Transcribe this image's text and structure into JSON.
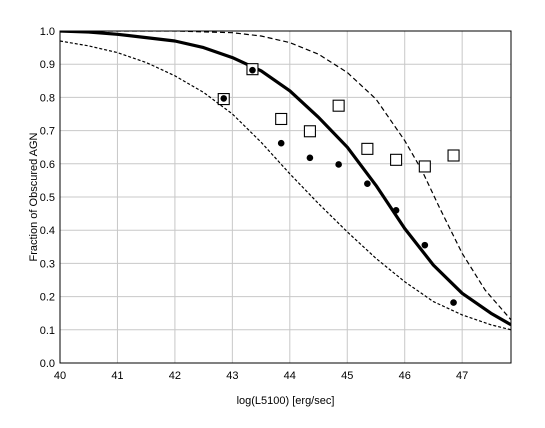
{
  "chart_data": {
    "type": "scatter",
    "title": "",
    "xlabel": "log(L5100) [erg/sec]",
    "ylabel": "Fraction of Obscured AGN",
    "xlim": [
      40,
      47.85
    ],
    "ylim": [
      0.0,
      1.0
    ],
    "xticks": [
      "40",
      "41",
      "42",
      "43",
      "44",
      "45",
      "46",
      "47"
    ],
    "yticks": [
      "0.0",
      "0.1",
      "0.2",
      "0.3",
      "0.4",
      "0.5",
      "0.6",
      "0.7",
      "0.8",
      "0.9",
      "1.0"
    ],
    "grid": true,
    "legend": "none",
    "series": [
      {
        "style": "solid-thick-line",
        "x": [
          40.0,
          40.5,
          41.0,
          41.5,
          42.0,
          42.5,
          43.0,
          43.5,
          44.0,
          44.5,
          45.0,
          45.5,
          46.0,
          46.5,
          47.0,
          47.5,
          47.85
        ],
        "y": [
          1.0,
          0.997,
          0.99,
          0.98,
          0.97,
          0.95,
          0.92,
          0.88,
          0.82,
          0.74,
          0.65,
          0.535,
          0.405,
          0.295,
          0.21,
          0.15,
          0.115
        ]
      },
      {
        "style": "dashed-line",
        "x": [
          40.0,
          41.0,
          42.0,
          43.0,
          43.5,
          44.0,
          44.5,
          45.0,
          45.5,
          46.0,
          46.3,
          46.6,
          47.0,
          47.4,
          47.85
        ],
        "y": [
          1.0,
          1.0,
          1.0,
          0.995,
          0.985,
          0.965,
          0.93,
          0.875,
          0.795,
          0.67,
          0.58,
          0.47,
          0.33,
          0.22,
          0.13
        ]
      },
      {
        "style": "dotted-line",
        "x": [
          40.0,
          40.5,
          41.0,
          41.5,
          42.0,
          42.5,
          43.0,
          43.5,
          44.0,
          44.5,
          45.0,
          45.5,
          46.0,
          46.5,
          47.0,
          47.5,
          47.85
        ],
        "y": [
          0.97,
          0.955,
          0.935,
          0.905,
          0.865,
          0.815,
          0.75,
          0.665,
          0.57,
          0.48,
          0.395,
          0.315,
          0.245,
          0.185,
          0.145,
          0.115,
          0.1
        ]
      },
      {
        "style": "open-squares",
        "x": [
          42.85,
          43.35,
          43.85,
          44.35,
          44.85,
          45.35,
          45.85,
          46.35,
          46.85
        ],
        "y": [
          0.795,
          0.885,
          0.735,
          0.698,
          0.775,
          0.645,
          0.612,
          0.592,
          0.625
        ]
      },
      {
        "style": "filled-circles",
        "x": [
          42.85,
          43.35,
          43.85,
          44.35,
          44.85,
          45.35,
          45.85,
          46.35,
          46.85
        ],
        "y": [
          0.797,
          0.882,
          0.662,
          0.618,
          0.598,
          0.54,
          0.46,
          0.355,
          0.182
        ]
      }
    ]
  }
}
